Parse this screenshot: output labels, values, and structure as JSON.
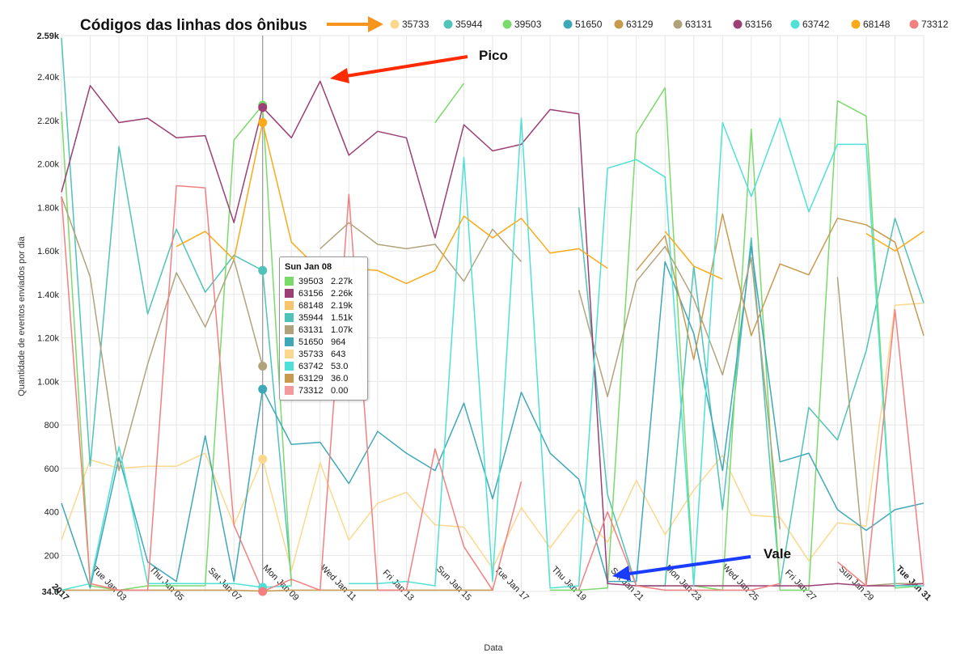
{
  "header": {
    "title": "Códigos das linhas dos ônibus"
  },
  "annotations": {
    "peak": "Pico",
    "valley": "Vale"
  },
  "tooltip": {
    "date": "Sun Jan 08",
    "rows": [
      {
        "key": "39503",
        "value": "2.27k",
        "color": "#7ada6a"
      },
      {
        "key": "63156",
        "value": "2.26k",
        "color": "#9b3f74"
      },
      {
        "key": "68148",
        "value": "2.19k",
        "color": "#f9c46e"
      },
      {
        "key": "35944",
        "value": "1.51k",
        "color": "#4fc3b8"
      },
      {
        "key": "63131",
        "value": "1.07k",
        "color": "#b0a37c"
      },
      {
        "key": "51650",
        "value": "964",
        "color": "#3fa8b8"
      },
      {
        "key": "35733",
        "value": "643",
        "color": "#fcd88e"
      },
      {
        "key": "63742",
        "value": "53.0",
        "color": "#4fe0d6"
      },
      {
        "key": "63129",
        "value": "36.0",
        "color": "#c79a4e"
      },
      {
        "key": "73312",
        "value": "0.00",
        "color": "#f59a9a"
      }
    ]
  },
  "chart_data": {
    "type": "line",
    "xlabel": "Data",
    "ylabel": "Quantidade de eventos enviados por dia",
    "ylim": [
      34,
      2590
    ],
    "y_ticks": [
      34,
      200,
      400,
      600,
      800,
      1000,
      1200,
      1400,
      1600,
      1800,
      2000,
      2200,
      2400,
      2590
    ],
    "y_tick_labels": [
      "34.0",
      "200",
      "400",
      "600",
      "800",
      "1.00k",
      "1.20k",
      "1.40k",
      "1.60k",
      "1.80k",
      "2.00k",
      "2.20k",
      "2.40k",
      "2.59k"
    ],
    "x_range": [
      "2017-01-01",
      "2017-01-31"
    ],
    "x_ticks": [
      "2017-01-01",
      "2017-01-03",
      "2017-01-05",
      "2017-01-07",
      "2017-01-09",
      "2017-01-11",
      "2017-01-13",
      "2017-01-15",
      "2017-01-17",
      "2017-01-19",
      "2017-01-21",
      "2017-01-23",
      "2017-01-25",
      "2017-01-27",
      "2017-01-29",
      "2017-01-31"
    ],
    "x_tick_labels": [
      "2017",
      "Tue Jan 03",
      "Thu Jan 05",
      "Sat Jan 07",
      "Mon Jan 09",
      "Wed Jan 11",
      "Fri Jan 13",
      "Sun Jan 15",
      "Tue Jan 17",
      "Thu Jan 19",
      "Sat Jan 21",
      "Mon Jan 23",
      "Wed Jan 25",
      "Fri Jan 27",
      "Sun Jan 29",
      "Tue Jan 31"
    ],
    "x_tick_bold": [
      "2017",
      "Tue Jan 31"
    ],
    "legend_position": "top",
    "grid": true,
    "highlight_date": "2017-01-08",
    "x": [
      "2017-01-01",
      "2017-01-02",
      "2017-01-03",
      "2017-01-04",
      "2017-01-05",
      "2017-01-06",
      "2017-01-07",
      "2017-01-08",
      "2017-01-09",
      "2017-01-10",
      "2017-01-11",
      "2017-01-12",
      "2017-01-13",
      "2017-01-14",
      "2017-01-15",
      "2017-01-16",
      "2017-01-17",
      "2017-01-18",
      "2017-01-19",
      "2017-01-20",
      "2017-01-21",
      "2017-01-22",
      "2017-01-23",
      "2017-01-24",
      "2017-01-25",
      "2017-01-26",
      "2017-01-27",
      "2017-01-28",
      "2017-01-29",
      "2017-01-30",
      "2017-01-31"
    ],
    "series": [
      {
        "name": "35733",
        "color": "#fcd88e",
        "values": [
          270,
          640,
          600,
          610,
          610,
          670,
          340,
          643,
          130,
          625,
          270,
          440,
          490,
          340,
          330,
          140,
          420,
          235,
          410,
          260,
          545,
          295,
          500,
          660,
          385,
          375,
          175,
          350,
          335,
          1350,
          1360
        ]
      },
      {
        "name": "35944",
        "color": "#4fc3b8",
        "values": [
          2580,
          610,
          2080,
          1310,
          1700,
          1410,
          1580,
          1510,
          80,
          null,
          null,
          null,
          null,
          null,
          null,
          null,
          null,
          null,
          1800,
          480,
          60,
          60,
          1530,
          410,
          1660,
          60,
          880,
          730,
          1140,
          1750,
          1360
        ]
      },
      {
        "name": "39503",
        "color": "#7ada6a",
        "values": [
          2240,
          60,
          40,
          60,
          60,
          60,
          2110,
          2270,
          60,
          null,
          null,
          null,
          null,
          2190,
          2370,
          null,
          null,
          40,
          40,
          50,
          2140,
          2350,
          60,
          40,
          2160,
          40,
          40,
          2290,
          2220,
          50,
          60
        ]
      },
      {
        "name": "51650",
        "color": "#3fa8b8",
        "values": [
          440,
          50,
          650,
          170,
          80,
          750,
          80,
          964,
          710,
          720,
          530,
          770,
          670,
          590,
          900,
          460,
          950,
          670,
          550,
          80,
          80,
          1550,
          1220,
          590,
          1620,
          630,
          670,
          410,
          315,
          410,
          440
        ]
      },
      {
        "name": "63129",
        "color": "#c79a4e",
        "values": [
          40,
          40,
          40,
          40,
          40,
          40,
          40,
          36,
          40,
          40,
          40,
          40,
          40,
          40,
          40,
          40,
          null,
          null,
          null,
          null,
          1510,
          1670,
          1100,
          1770,
          1210,
          1540,
          1490,
          1750,
          1720,
          1640,
          1210
        ]
      },
      {
        "name": "63131",
        "color": "#b0a37c",
        "values": [
          1850,
          1480,
          590,
          1080,
          1500,
          1250,
          1560,
          1070,
          null,
          1610,
          1730,
          1630,
          1610,
          1630,
          1460,
          1700,
          1550,
          null,
          1420,
          930,
          1460,
          1620,
          1380,
          1030,
          1570,
          320,
          null,
          1480,
          60,
          70,
          70
        ]
      },
      {
        "name": "63156",
        "color": "#9b3f74",
        "values": [
          1870,
          2360,
          2190,
          2210,
          2120,
          2130,
          1730,
          2260,
          2120,
          2380,
          2040,
          2150,
          2120,
          1660,
          2180,
          2060,
          2090,
          2250,
          2230,
          70,
          60,
          60,
          60,
          60,
          60,
          60,
          60,
          70,
          60,
          60,
          70
        ]
      },
      {
        "name": "63742",
        "color": "#4fe0d6",
        "values": [
          40,
          70,
          700,
          70,
          70,
          70,
          70,
          53,
          60,
          null,
          70,
          70,
          80,
          60,
          2030,
          80,
          2210,
          50,
          60,
          1980,
          2020,
          1940,
          60,
          2190,
          1850,
          2210,
          1780,
          2090,
          2090,
          60,
          60
        ]
      },
      {
        "name": "68148",
        "color": "#f9aa1a",
        "values": [
          null,
          null,
          null,
          null,
          1620,
          1690,
          1560,
          2190,
          1640,
          1510,
          1520,
          1510,
          1450,
          1510,
          1760,
          1660,
          1750,
          1590,
          1610,
          1520,
          null,
          1690,
          1530,
          1470,
          null,
          null,
          null,
          null,
          1680,
          1600,
          1690
        ]
      },
      {
        "name": "73312",
        "color": "#f28080",
        "values": [
          1850,
          70,
          40,
          40,
          1900,
          1890,
          340,
          0,
          90,
          40,
          1860,
          40,
          40,
          690,
          240,
          40,
          540,
          null,
          40,
          400,
          60,
          40,
          40,
          40,
          40,
          70,
          null,
          170,
          60,
          1330,
          60
        ]
      }
    ]
  }
}
